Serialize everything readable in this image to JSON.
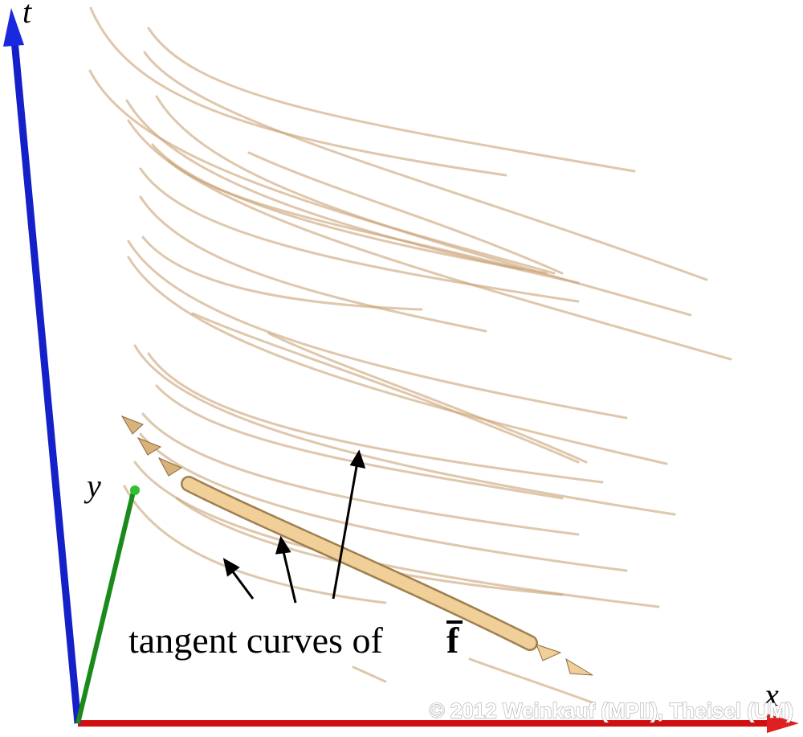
{
  "axes": {
    "t": "t",
    "y": "y",
    "x": "x"
  },
  "annotation": {
    "label": "tangent curves of",
    "symbol": "f"
  },
  "copyright": "© 2012 Weinkauf (MPII), Theisel (UM)"
}
